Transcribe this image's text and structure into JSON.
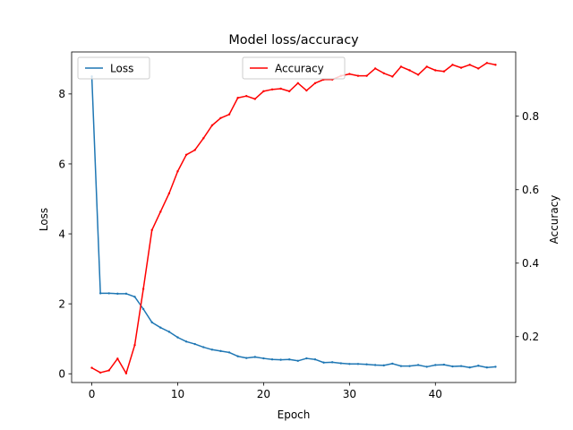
{
  "chart_data": {
    "type": "line",
    "title": "Model loss/accuracy",
    "xlabel": "Epoch",
    "ylabel": "Loss",
    "ylabel_right": "Accuracy",
    "xlim": [
      -2.35,
      49.35
    ],
    "ylim": [
      -0.25,
      9.2
    ],
    "ylim_right": [
      0.075,
      0.975
    ],
    "x_ticks": [
      0,
      10,
      20,
      30,
      40
    ],
    "y_ticks": [
      0,
      2,
      4,
      6,
      8
    ],
    "y_ticks_right": [
      0.2,
      0.4,
      0.6,
      0.8
    ],
    "grid": false,
    "x": [
      0,
      1,
      2,
      3,
      4,
      5,
      6,
      7,
      8,
      9,
      10,
      11,
      12,
      13,
      14,
      15,
      16,
      17,
      18,
      19,
      20,
      21,
      22,
      23,
      24,
      25,
      26,
      27,
      28,
      29,
      30,
      31,
      32,
      33,
      34,
      35,
      36,
      37,
      38,
      39,
      40,
      41,
      42,
      43,
      44,
      45,
      46,
      47
    ],
    "series": [
      {
        "name": "Loss",
        "axis": "left",
        "color": "#1f77b4",
        "legend_position": "upper left",
        "values": [
          8.5,
          2.3,
          2.3,
          2.29,
          2.29,
          2.2,
          1.85,
          1.47,
          1.32,
          1.2,
          1.04,
          0.92,
          0.85,
          0.76,
          0.69,
          0.65,
          0.61,
          0.5,
          0.45,
          0.48,
          0.44,
          0.41,
          0.4,
          0.41,
          0.37,
          0.44,
          0.41,
          0.32,
          0.33,
          0.3,
          0.28,
          0.28,
          0.27,
          0.25,
          0.24,
          0.29,
          0.22,
          0.22,
          0.25,
          0.2,
          0.25,
          0.26,
          0.21,
          0.22,
          0.18,
          0.23,
          0.18,
          0.2
        ]
      },
      {
        "name": "Accuracy",
        "axis": "right",
        "color": "#ff0000",
        "legend_position": "upper center",
        "values": [
          0.115,
          0.102,
          0.108,
          0.14,
          0.1,
          0.177,
          0.33,
          0.49,
          0.54,
          0.59,
          0.65,
          0.695,
          0.708,
          0.74,
          0.775,
          0.795,
          0.805,
          0.85,
          0.855,
          0.847,
          0.868,
          0.873,
          0.875,
          0.868,
          0.89,
          0.87,
          0.89,
          0.9,
          0.9,
          0.91,
          0.915,
          0.91,
          0.91,
          0.93,
          0.917,
          0.908,
          0.935,
          0.925,
          0.913,
          0.935,
          0.925,
          0.922,
          0.94,
          0.932,
          0.94,
          0.93,
          0.945,
          0.94
        ]
      }
    ]
  }
}
